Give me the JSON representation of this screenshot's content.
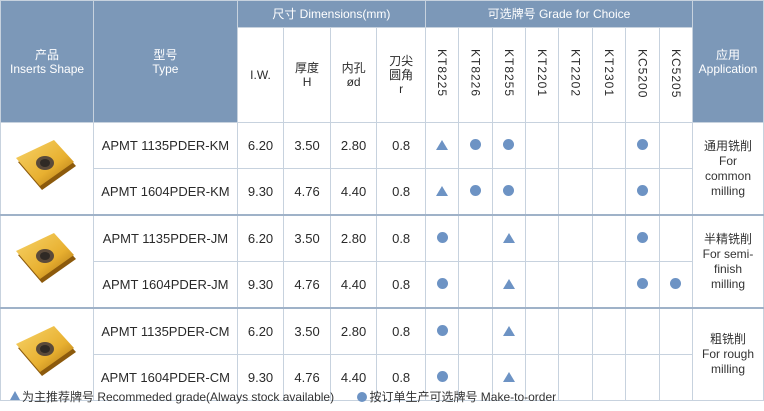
{
  "header": {
    "product_cn": "产品",
    "product_en": "Inserts Shape",
    "type_cn": "型号",
    "type_en": "Type",
    "dimensions": "尺寸 Dimensions(mm)",
    "grades_title": "可选牌号 Grade for Choice",
    "application_cn": "应用",
    "application_en": "Application",
    "dim_iw": "I.W.",
    "dim_h_cn": "厚度",
    "dim_h": "H",
    "dim_d_cn": "内孔",
    "dim_d": "ød",
    "dim_r_cn1": "刀尖",
    "dim_r_cn2": "圆角",
    "dim_r": "r",
    "grades": [
      "KT8225",
      "KT8226",
      "KT8255",
      "KT2201",
      "KT2202",
      "KT2301",
      "KC5200",
      "KC5205"
    ]
  },
  "groups": [
    {
      "application": [
        "通用铣削",
        "For",
        "common",
        "milling"
      ],
      "rows": [
        {
          "type": "APMT 1135PDER-KM",
          "iw": "6.20",
          "h": "3.50",
          "d": "2.80",
          "r": "0.8",
          "grades": [
            "triangle",
            "circle",
            "circle",
            "",
            "",
            "",
            "circle",
            ""
          ]
        },
        {
          "type": "APMT 1604PDER-KM",
          "iw": "9.30",
          "h": "4.76",
          "d": "4.40",
          "r": "0.8",
          "grades": [
            "triangle",
            "circle",
            "circle",
            "",
            "",
            "",
            "circle",
            ""
          ]
        }
      ]
    },
    {
      "application": [
        "半精铣削",
        "For semi-",
        "finish",
        "milling"
      ],
      "rows": [
        {
          "type": "APMT 1135PDER-JM",
          "iw": "6.20",
          "h": "3.50",
          "d": "2.80",
          "r": "0.8",
          "grades": [
            "circle",
            "",
            "triangle",
            "",
            "",
            "",
            "circle",
            ""
          ]
        },
        {
          "type": "APMT 1604PDER-JM",
          "iw": "9.30",
          "h": "4.76",
          "d": "4.40",
          "r": "0.8",
          "grades": [
            "circle",
            "",
            "triangle",
            "",
            "",
            "",
            "circle",
            "circle"
          ]
        }
      ]
    },
    {
      "application": [
        "粗铣削",
        "For rough",
        "milling"
      ],
      "rows": [
        {
          "type": "APMT 1135PDER-CM",
          "iw": "6.20",
          "h": "3.50",
          "d": "2.80",
          "r": "0.8",
          "grades": [
            "circle",
            "",
            "triangle",
            "",
            "",
            "",
            "",
            ""
          ]
        },
        {
          "type": "APMT 1604PDER-CM",
          "iw": "9.30",
          "h": "4.76",
          "d": "4.40",
          "r": "0.8",
          "grades": [
            "circle",
            "",
            "triangle",
            "",
            "",
            "",
            "",
            ""
          ]
        }
      ]
    }
  ],
  "legend": {
    "recommended": "为主推荐牌号 Recommeded grade(Always stock available)",
    "make_to_order": "按订单生产可选牌号 Make-to-order"
  },
  "colors": {
    "header_bg": "#7c98b8",
    "marker": "#6d93c4",
    "insert_gold": "#e8b030"
  }
}
